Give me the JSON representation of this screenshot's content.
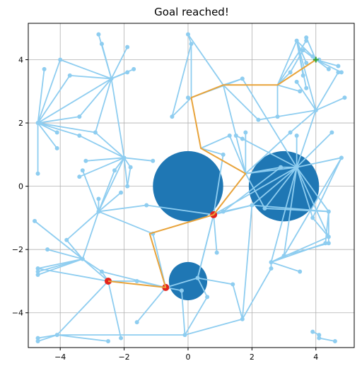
{
  "chart_data": {
    "type": "scatter",
    "title": "Goal reached!",
    "xlabel": "",
    "ylabel": "",
    "xlim": [
      -5.0,
      5.2
    ],
    "ylim": [
      -5.1,
      5.15
    ],
    "x_ticks": [
      -4,
      -2,
      0,
      2,
      4
    ],
    "y_ticks": [
      -4,
      -2,
      0,
      2,
      4
    ],
    "x_tick_labels": [
      "−4",
      "−2",
      "0",
      "2",
      "4"
    ],
    "y_tick_labels": [
      "−4",
      "−2",
      "0",
      "2",
      "4"
    ],
    "grid": true,
    "colors": {
      "tree": "#8ecdf0",
      "obstacle": "#1f77b4",
      "path": "#e8a33a",
      "start": "#e3231c",
      "goal": "#2ca02c",
      "grid": "#b0b0b0"
    },
    "obstacles": [
      {
        "cx": 0.0,
        "cy": 0.0,
        "r": 1.1
      },
      {
        "cx": 3.0,
        "cy": 0.0,
        "r": 1.1
      },
      {
        "cx": 0.0,
        "cy": -3.0,
        "r": 0.6
      }
    ],
    "start": {
      "x": -2.5,
      "y": -3.0
    },
    "goal": {
      "x": 4.0,
      "y": 4.0
    },
    "waypoints": [
      {
        "x": 0.8,
        "y": -0.9
      },
      {
        "x": -0.7,
        "y": -3.2
      }
    ],
    "path": [
      [
        -2.5,
        -3.0
      ],
      [
        -0.7,
        -3.2
      ],
      [
        -1.2,
        -1.5
      ],
      [
        0.8,
        -0.9
      ],
      [
        1.8,
        0.4
      ],
      [
        0.4,
        1.2
      ],
      [
        0.1,
        2.8
      ],
      [
        1.1,
        3.2
      ],
      [
        2.8,
        3.2
      ],
      [
        4.0,
        4.0
      ]
    ],
    "nodes": [
      [
        -4.7,
        2.0
      ],
      [
        -4.5,
        3.7
      ],
      [
        -4.0,
        4.0
      ],
      [
        -3.7,
        3.5
      ],
      [
        -4.7,
        0.4
      ],
      [
        -4.1,
        1.2
      ],
      [
        -4.1,
        1.7
      ],
      [
        -3.4,
        2.2
      ],
      [
        -3.4,
        1.6
      ],
      [
        -2.9,
        1.7
      ],
      [
        -2.4,
        3.4
      ],
      [
        -2.8,
        4.8
      ],
      [
        -2.7,
        4.5
      ],
      [
        -1.9,
        4.4
      ],
      [
        -1.9,
        3.6
      ],
      [
        -1.7,
        3.7
      ],
      [
        -3.2,
        0.8
      ],
      [
        -3.4,
        0.3
      ],
      [
        -3.3,
        0.5
      ],
      [
        -2.0,
        0.9
      ],
      [
        -2.3,
        0.5
      ],
      [
        -1.8,
        0.6
      ],
      [
        -1.1,
        0.8
      ],
      [
        -1.9,
        0.0
      ],
      [
        -2.1,
        -0.2
      ],
      [
        -2.8,
        -0.4
      ],
      [
        -2.8,
        -0.8
      ],
      [
        -1.3,
        -0.6
      ],
      [
        -4.8,
        -1.1
      ],
      [
        -3.8,
        -1.7
      ],
      [
        -4.4,
        -2.0
      ],
      [
        -3.3,
        -2.3
      ],
      [
        -4.7,
        -2.6
      ],
      [
        -4.7,
        -2.8
      ],
      [
        -4.7,
        -2.7
      ],
      [
        -2.7,
        -2.7
      ],
      [
        -1.6,
        -3.0
      ],
      [
        -1.1,
        -1.5
      ],
      [
        -1.6,
        -4.3
      ],
      [
        -2.1,
        -4.8
      ],
      [
        -2.5,
        -4.9
      ],
      [
        -4.7,
        -4.8
      ],
      [
        -4.7,
        -4.9
      ],
      [
        -4.1,
        -4.7
      ],
      [
        -0.1,
        -4.7
      ],
      [
        0.3,
        -2.9
      ],
      [
        -0.2,
        -3.3
      ],
      [
        0.6,
        -3.5
      ],
      [
        0.9,
        -2.1
      ],
      [
        1.4,
        -3.1
      ],
      [
        1.7,
        -4.2
      ],
      [
        1.1,
        -0.8
      ],
      [
        1.1,
        1.0
      ],
      [
        1.5,
        1.6
      ],
      [
        1.3,
        1.6
      ],
      [
        1.8,
        1.7
      ],
      [
        1.7,
        1.5
      ],
      [
        0.0,
        4.8
      ],
      [
        0.1,
        4.5
      ],
      [
        0.0,
        2.8
      ],
      [
        -0.5,
        2.2
      ],
      [
        1.7,
        3.4
      ],
      [
        2.2,
        2.1
      ],
      [
        2.8,
        2.2
      ],
      [
        3.2,
        3.6
      ],
      [
        3.4,
        4.6
      ],
      [
        3.7,
        4.6
      ],
      [
        3.7,
        3.9
      ],
      [
        3.6,
        3.5
      ],
      [
        3.5,
        3.0
      ],
      [
        3.7,
        3.1
      ],
      [
        4.0,
        2.4
      ],
      [
        4.4,
        3.7
      ],
      [
        4.7,
        3.8
      ],
      [
        4.7,
        3.6
      ],
      [
        4.8,
        3.6
      ],
      [
        4.9,
        2.8
      ],
      [
        3.9,
        4.1
      ],
      [
        4.1,
        4.0
      ],
      [
        3.7,
        4.7
      ],
      [
        3.6,
        4.3
      ],
      [
        3.4,
        3.3
      ],
      [
        4.5,
        1.7
      ],
      [
        4.8,
        0.9
      ],
      [
        3.4,
        1.6
      ],
      [
        3.2,
        1.7
      ],
      [
        4.4,
        -0.8
      ],
      [
        4.4,
        -1.6
      ],
      [
        4.3,
        -1.8
      ],
      [
        3.9,
        -1.0
      ],
      [
        4.4,
        -1.8
      ],
      [
        3.0,
        -2.2
      ],
      [
        2.6,
        -2.4
      ],
      [
        2.6,
        -2.6
      ],
      [
        3.5,
        -2.7
      ],
      [
        2.0,
        -0.6
      ],
      [
        2.4,
        -0.7
      ],
      [
        3.4,
        0.6
      ],
      [
        2.9,
        0.6
      ],
      [
        3.9,
        -4.6
      ],
      [
        4.1,
        -4.7
      ],
      [
        4.1,
        -4.8
      ],
      [
        4.6,
        -4.9
      ]
    ],
    "edges": [
      [
        -4.7,
        2.0,
        -4.5,
        3.7
      ],
      [
        -4.7,
        2.0,
        -4.0,
        4.0
      ],
      [
        -4.7,
        2.0,
        -3.7,
        3.5
      ],
      [
        -4.7,
        2.0,
        -4.7,
        0.4
      ],
      [
        -4.7,
        2.0,
        -4.1,
        1.2
      ],
      [
        -4.7,
        2.0,
        -4.1,
        1.7
      ],
      [
        -4.7,
        2.0,
        -3.4,
        2.2
      ],
      [
        -4.7,
        2.0,
        -3.4,
        1.6
      ],
      [
        -4.7,
        2.0,
        -2.4,
        3.4
      ],
      [
        -4.7,
        2.0,
        -2.9,
        1.7
      ],
      [
        -2.4,
        3.4,
        -2.8,
        4.8
      ],
      [
        -2.4,
        3.4,
        -2.7,
        4.5
      ],
      [
        -2.4,
        3.4,
        -1.9,
        4.4
      ],
      [
        -2.4,
        3.4,
        -1.9,
        3.6
      ],
      [
        -2.4,
        3.4,
        -1.7,
        3.7
      ],
      [
        -2.4,
        3.4,
        -3.7,
        3.5
      ],
      [
        -2.4,
        3.4,
        -4.0,
        4.0
      ],
      [
        -2.4,
        3.4,
        -3.4,
        2.2
      ],
      [
        -2.4,
        3.4,
        -2.9,
        1.7
      ],
      [
        -2.4,
        3.4,
        -2.0,
        0.9
      ],
      [
        -2.0,
        0.9,
        -3.2,
        0.8
      ],
      [
        -2.0,
        0.9,
        -3.4,
        0.3
      ],
      [
        -2.0,
        0.9,
        -2.9,
        1.7
      ],
      [
        -2.0,
        0.9,
        -3.4,
        1.6
      ],
      [
        -2.0,
        0.9,
        -1.8,
        0.6
      ],
      [
        -2.0,
        0.9,
        -1.1,
        0.8
      ],
      [
        -2.0,
        0.9,
        -1.9,
        0.0
      ],
      [
        -2.0,
        0.9,
        -2.8,
        -0.8
      ],
      [
        -2.0,
        0.9,
        -2.3,
        0.5
      ],
      [
        -2.8,
        -0.8,
        -3.3,
        0.5
      ],
      [
        -2.8,
        -0.8,
        -2.8,
        -0.4
      ],
      [
        -2.8,
        -0.8,
        -2.1,
        -0.2
      ],
      [
        -2.8,
        -0.8,
        -1.3,
        -0.6
      ],
      [
        -2.8,
        -0.8,
        -3.8,
        -1.7
      ],
      [
        -2.8,
        -0.8,
        -3.3,
        -2.3
      ],
      [
        -2.8,
        -0.8,
        -1.1,
        -1.5
      ],
      [
        -2.8,
        -0.8,
        -2.3,
        0.5
      ],
      [
        -3.3,
        -2.3,
        -4.8,
        -1.1
      ],
      [
        -3.3,
        -2.3,
        -4.4,
        -2.0
      ],
      [
        -3.3,
        -2.3,
        -4.7,
        -2.6
      ],
      [
        -3.3,
        -2.3,
        -4.7,
        -2.8
      ],
      [
        -3.3,
        -2.3,
        -4.7,
        -2.7
      ],
      [
        -3.3,
        -2.3,
        -3.8,
        -1.7
      ],
      [
        -3.3,
        -2.3,
        -2.7,
        -2.7
      ],
      [
        -2.5,
        -3.0,
        -2.7,
        -2.7
      ],
      [
        -2.5,
        -3.0,
        -1.6,
        -3.0
      ],
      [
        -2.5,
        -3.0,
        -2.1,
        -4.8
      ],
      [
        -2.5,
        -3.0,
        -4.1,
        -4.7
      ],
      [
        -2.5,
        -3.0,
        -3.3,
        -2.3
      ],
      [
        -2.5,
        -3.0,
        -4.7,
        -2.6
      ],
      [
        -4.1,
        -4.7,
        -4.7,
        -4.8
      ],
      [
        -4.1,
        -4.7,
        -4.7,
        -4.9
      ],
      [
        -4.1,
        -4.7,
        -2.5,
        -4.9
      ],
      [
        -4.1,
        -4.7,
        -0.1,
        -4.7
      ],
      [
        -0.7,
        -3.2,
        -1.6,
        -4.3
      ],
      [
        -0.7,
        -3.2,
        -1.6,
        -3.0
      ],
      [
        -0.7,
        -3.2,
        -0.2,
        -3.3
      ],
      [
        -0.7,
        -3.2,
        0.3,
        -2.9
      ],
      [
        -0.7,
        -3.2,
        -1.1,
        -1.5
      ],
      [
        -0.7,
        -3.2,
        -2.7,
        -2.7
      ],
      [
        -0.1,
        -4.7,
        -0.2,
        -3.3
      ],
      [
        -0.1,
        -4.7,
        0.6,
        -3.5
      ],
      [
        -0.1,
        -4.7,
        1.7,
        -4.2
      ],
      [
        0.3,
        -2.9,
        1.4,
        -3.1
      ],
      [
        0.3,
        -2.9,
        0.6,
        -3.5
      ],
      [
        0.3,
        -2.9,
        0.8,
        -0.9
      ],
      [
        1.7,
        -4.2,
        1.4,
        -3.1
      ],
      [
        1.7,
        -4.2,
        2.0,
        -0.6
      ],
      [
        1.7,
        -4.2,
        2.6,
        -2.6
      ],
      [
        0.8,
        -0.9,
        0.9,
        -2.1
      ],
      [
        0.8,
        -0.9,
        -1.3,
        -0.6
      ],
      [
        0.8,
        -0.9,
        1.1,
        -0.8
      ],
      [
        0.8,
        -0.9,
        2.0,
        -0.6
      ],
      [
        0.8,
        -0.9,
        3.4,
        0.6
      ],
      [
        0.8,
        -0.9,
        1.1,
        1.0
      ],
      [
        0.8,
        -0.9,
        0.3,
        -2.9
      ],
      [
        1.8,
        0.4,
        1.5,
        1.6
      ],
      [
        1.8,
        0.4,
        1.3,
        1.6
      ],
      [
        1.8,
        0.4,
        1.8,
        1.7
      ],
      [
        1.8,
        0.4,
        3.4,
        0.6
      ],
      [
        1.8,
        0.4,
        2.9,
        0.6
      ],
      [
        1.8,
        0.4,
        3.2,
        1.7
      ],
      [
        1.8,
        0.4,
        2.4,
        -0.7
      ],
      [
        0.4,
        1.2,
        1.1,
        1.0
      ],
      [
        0.4,
        1.2,
        1.3,
        1.6
      ],
      [
        0.1,
        2.8,
        -0.5,
        2.2
      ],
      [
        0.1,
        2.8,
        0.1,
        4.5
      ],
      [
        0.1,
        2.8,
        1.7,
        3.4
      ],
      [
        0.0,
        4.8,
        1.1,
        3.2
      ],
      [
        0.0,
        4.8,
        0.1,
        4.5
      ],
      [
        1.1,
        3.2,
        1.7,
        3.4
      ],
      [
        1.1,
        3.2,
        2.2,
        2.1
      ],
      [
        1.1,
        3.2,
        1.5,
        1.6
      ],
      [
        2.8,
        3.2,
        2.8,
        2.2
      ],
      [
        2.8,
        3.2,
        3.4,
        4.6
      ],
      [
        2.8,
        3.2,
        3.7,
        4.6
      ],
      [
        2.8,
        3.2,
        3.5,
        3.0
      ],
      [
        2.8,
        3.2,
        3.2,
        3.6
      ],
      [
        3.4,
        4.6,
        4.0,
        4.0
      ],
      [
        3.4,
        4.6,
        3.7,
        3.9
      ],
      [
        3.4,
        4.6,
        3.6,
        3.5
      ],
      [
        3.4,
        4.6,
        3.7,
        3.1
      ],
      [
        3.4,
        4.6,
        4.0,
        2.4
      ],
      [
        4.0,
        4.0,
        4.4,
        3.7
      ],
      [
        4.0,
        4.0,
        4.7,
        3.8
      ],
      [
        4.0,
        4.0,
        4.8,
        3.6
      ],
      [
        4.0,
        4.0,
        3.7,
        4.7
      ],
      [
        4.0,
        4.0,
        3.6,
        4.3
      ],
      [
        4.0,
        4.0,
        3.9,
        4.1
      ],
      [
        4.0,
        4.0,
        4.1,
        4.0
      ],
      [
        4.0,
        2.4,
        4.9,
        2.8
      ],
      [
        4.0,
        2.4,
        4.7,
        3.6
      ],
      [
        4.0,
        2.4,
        3.4,
        3.3
      ],
      [
        4.0,
        2.4,
        2.2,
        2.1
      ],
      [
        4.0,
        2.4,
        3.2,
        1.7
      ],
      [
        4.0,
        2.4,
        3.4,
        0.6
      ],
      [
        3.4,
        0.6,
        4.5,
        1.7
      ],
      [
        3.4,
        0.6,
        4.8,
        0.9
      ],
      [
        3.4,
        0.6,
        3.4,
        1.6
      ],
      [
        3.4,
        0.6,
        2.9,
        0.6
      ],
      [
        3.4,
        0.6,
        4.4,
        -0.8
      ],
      [
        3.4,
        0.6,
        4.4,
        -1.6
      ],
      [
        3.4,
        0.6,
        3.9,
        -1.0
      ],
      [
        3.4,
        0.6,
        3.0,
        -2.2
      ],
      [
        3.4,
        0.6,
        2.6,
        -2.4
      ],
      [
        3.4,
        0.6,
        2.0,
        -0.6
      ],
      [
        3.4,
        0.6,
        2.4,
        -0.7
      ],
      [
        3.4,
        0.6,
        1.7,
        3.4
      ],
      [
        3.4,
        0.6,
        1.7,
        1.5
      ],
      [
        4.4,
        -0.8,
        4.4,
        -1.8
      ],
      [
        4.4,
        -0.8,
        4.3,
        -1.8
      ],
      [
        4.4,
        -0.8,
        2.4,
        -0.7
      ],
      [
        2.6,
        -2.4,
        3.5,
        -2.7
      ],
      [
        2.6,
        -2.4,
        4.3,
        -1.8
      ],
      [
        2.6,
        -2.4,
        4.4,
        -1.6
      ],
      [
        2.6,
        -2.4,
        2.6,
        -2.6
      ],
      [
        2.6,
        -2.4,
        3.0,
        -2.2
      ],
      [
        3.0,
        -2.2,
        4.4,
        -1.8
      ],
      [
        2.0,
        -0.6,
        4.4,
        -0.8
      ],
      [
        2.0,
        -0.6,
        1.1,
        -0.8
      ],
      [
        3.9,
        -1.0,
        4.4,
        -1.6
      ],
      [
        4.8,
        0.9,
        3.9,
        -1.0
      ],
      [
        4.8,
        0.9,
        3.0,
        -2.2
      ],
      [
        1.1,
        -0.8,
        2.9,
        0.6
      ],
      [
        3.9,
        -4.6,
        4.1,
        -4.7
      ],
      [
        4.1,
        -4.8,
        4.6,
        -4.9
      ],
      [
        -0.5,
        2.2,
        0.1,
        4.5
      ],
      [
        1.7,
        1.5,
        1.5,
        1.6
      ],
      [
        -1.9,
        0.0,
        -1.8,
        0.6
      ],
      [
        3.2,
        3.6,
        3.6,
        4.3
      ]
    ]
  }
}
